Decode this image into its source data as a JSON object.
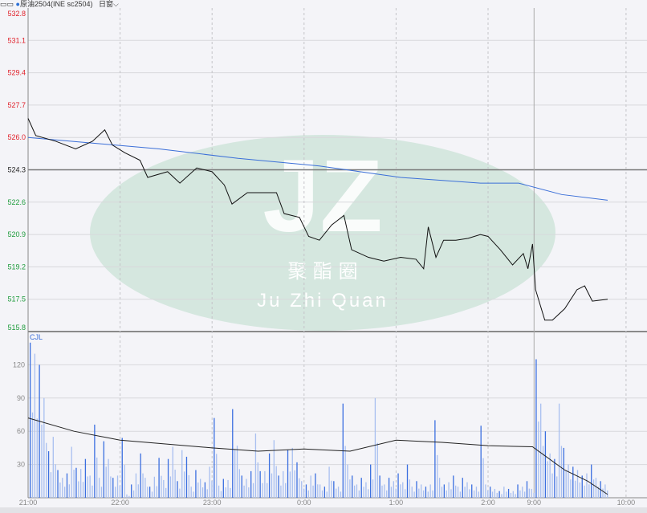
{
  "header": {
    "layout_icon": "link-icon",
    "dot_color": "#2a6fd6",
    "instrument": "原油2504(INE sc2504)",
    "period": "日窗",
    "period_icon": "chevron-down-icon"
  },
  "watermark": {
    "logo": "JZ",
    "cn": "聚 酯 圈",
    "en": "Ju Zhi Quan"
  },
  "volume_label": "CJL",
  "colors": {
    "up": "#e0202a",
    "down": "#1c9a3a",
    "price": "#111111",
    "avg": "#3b6fd8",
    "vol_dark": "#3b6fe0",
    "vol_light": "#a8bff0"
  },
  "chart_data": [
    {
      "type": "line",
      "panel": "price",
      "ylim": [
        515.8,
        532.8
      ],
      "y_ticks": [
        "532.8",
        "531.1",
        "529.4",
        "527.7",
        "526.0",
        "524.3",
        "522.6",
        "520.9",
        "519.2",
        "517.5",
        "515.8"
      ],
      "reference": 524.3,
      "x_ticks": [
        "21:00",
        "22:00",
        "23:00",
        "0:00",
        "1:00",
        "2:00",
        "9:00",
        "10:00"
      ],
      "sessions": [
        [
          "21:00",
          "02:30"
        ],
        [
          "09:00",
          "10:15"
        ]
      ],
      "series": [
        {
          "role": "price",
          "points": [
            [
              "21:00",
              527.0
            ],
            [
              "21:05",
              526.1
            ],
            [
              "21:18",
              525.8
            ],
            [
              "21:31",
              525.4
            ],
            [
              "21:42",
              525.8
            ],
            [
              "21:50",
              526.4
            ],
            [
              "21:55",
              525.6
            ],
            [
              "22:03",
              525.2
            ],
            [
              "22:13",
              524.8
            ],
            [
              "22:18",
              523.9
            ],
            [
              "22:31",
              524.2
            ],
            [
              "22:39",
              523.6
            ],
            [
              "22:50",
              524.4
            ],
            [
              "23:00",
              524.2
            ],
            [
              "23:08",
              523.5
            ],
            [
              "23:13",
              522.5
            ],
            [
              "23:23",
              523.1
            ],
            [
              "23:37",
              523.1
            ],
            [
              "23:42",
              523.1
            ],
            [
              "23:47",
              522.0
            ],
            [
              "23:57",
              521.8
            ],
            [
              "00:03",
              520.8
            ],
            [
              "00:10",
              520.6
            ],
            [
              "00:18",
              521.4
            ],
            [
              "00:26",
              521.9
            ],
            [
              "00:31",
              520.1
            ],
            [
              "00:42",
              519.7
            ],
            [
              "00:52",
              519.5
            ],
            [
              "01:03",
              519.7
            ],
            [
              "01:13",
              519.6
            ],
            [
              "01:18",
              519.1
            ],
            [
              "01:21",
              521.3
            ],
            [
              "01:26",
              519.7
            ],
            [
              "01:31",
              520.6
            ],
            [
              "01:39",
              520.6
            ],
            [
              "01:47",
              520.7
            ],
            [
              "01:55",
              520.9
            ],
            [
              "02:00",
              520.8
            ],
            [
              "02:08",
              520.1
            ],
            [
              "02:16",
              519.3
            ],
            [
              "02:23",
              519.9
            ],
            [
              "02:26",
              519.1
            ],
            [
              "02:29",
              520.4
            ],
            [
              "09:01",
              518.0
            ],
            [
              "09:07",
              516.4
            ],
            [
              "09:12",
              516.4
            ],
            [
              "09:20",
              517.0
            ],
            [
              "09:28",
              518.0
            ],
            [
              "09:33",
              518.2
            ],
            [
              "09:38",
              517.4
            ],
            [
              "09:48",
              517.5
            ]
          ]
        },
        {
          "role": "average",
          "points": [
            [
              "21:00",
              526.0
            ],
            [
              "22:25",
              525.4
            ],
            [
              "23:17",
              524.9
            ],
            [
              "00:10",
              524.5
            ],
            [
              "01:03",
              523.9
            ],
            [
              "01:55",
              523.6
            ],
            [
              "02:20",
              523.6
            ],
            [
              "09:18",
              523.0
            ],
            [
              "09:48",
              522.7
            ]
          ]
        }
      ]
    },
    {
      "type": "bar",
      "panel": "volume",
      "title": "CJL",
      "ylim": [
        0,
        150
      ],
      "y_ticks": [
        "120",
        "90",
        "60",
        "30"
      ],
      "bar_interval_minutes": 3,
      "values": [
        140,
        130,
        120,
        90,
        42,
        55,
        25,
        18,
        22,
        46,
        27,
        26,
        35,
        20,
        66,
        18,
        51,
        35,
        18,
        20,
        54,
        3,
        12,
        22,
        40,
        18,
        10,
        19,
        36,
        16,
        35,
        46,
        15,
        43,
        37,
        10,
        25,
        17,
        14,
        28,
        72,
        11,
        17,
        16,
        80,
        47,
        20,
        17,
        24,
        58,
        24,
        24,
        40,
        52,
        20,
        24,
        43,
        45,
        32,
        15,
        12,
        20,
        22,
        12,
        10,
        28,
        15,
        10,
        85,
        30,
        20,
        12,
        18,
        14,
        30,
        90,
        20,
        12,
        18,
        15,
        22,
        14,
        30,
        10,
        15,
        12,
        10,
        12,
        70,
        18,
        12,
        14,
        20,
        10,
        18,
        14,
        12,
        10,
        65,
        12,
        10,
        8,
        6,
        10,
        8,
        6,
        12,
        10,
        15,
        8,
        125,
        85,
        60,
        40,
        35,
        85,
        45,
        30,
        28,
        25,
        20,
        22,
        30,
        18,
        15,
        12
      ],
      "series": [
        {
          "role": "average",
          "points": [
            [
              "21:00",
              72
            ],
            [
              "21:30",
              60
            ],
            [
              "22:00",
              52
            ],
            [
              "23:00",
              45
            ],
            [
              "23:30",
              42
            ],
            [
              "00:00",
              44
            ],
            [
              "00:30",
              42
            ],
            [
              "01:00",
              52
            ],
            [
              "01:30",
              50
            ],
            [
              "02:00",
              47
            ],
            [
              "02:29",
              46
            ],
            [
              "09:05",
              40
            ],
            [
              "09:20",
              25
            ],
            [
              "09:35",
              15
            ],
            [
              "09:48",
              3
            ]
          ]
        }
      ]
    }
  ]
}
